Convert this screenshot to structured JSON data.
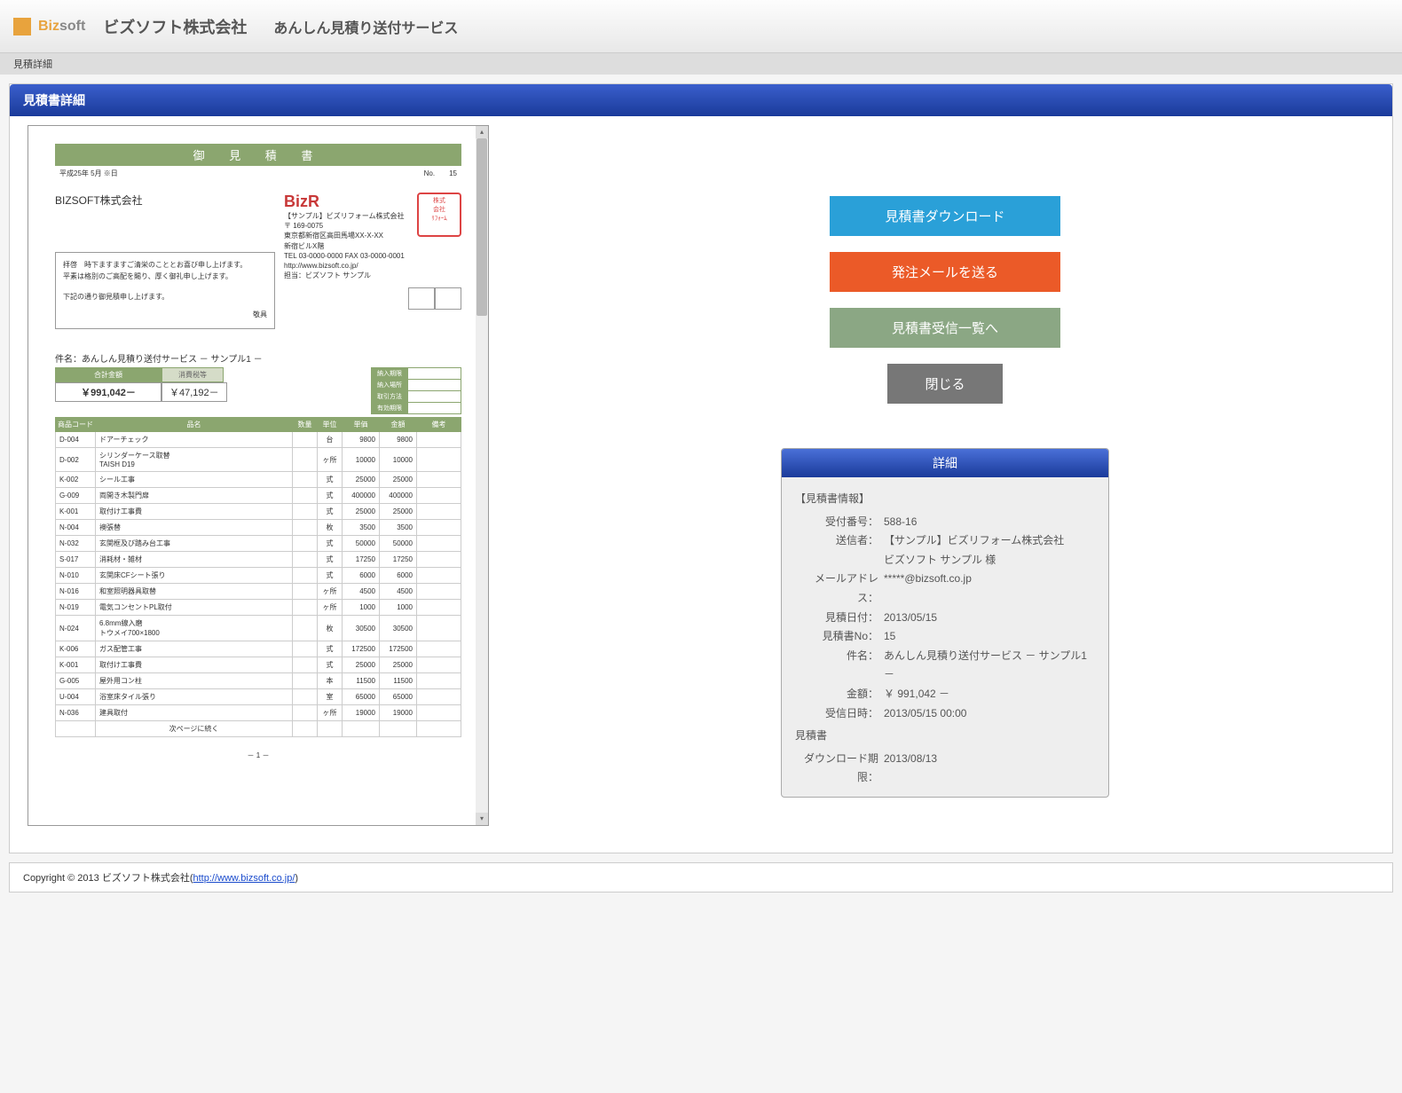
{
  "header": {
    "logo_orange": "Biz",
    "logo_gray": "soft",
    "company": "ビズソフト株式会社",
    "service": "あんしん見積り送付サービス"
  },
  "breadcrumb": "見積詳細",
  "panel_title": "見積書詳細",
  "document": {
    "title": "御 見 積 書",
    "date": "平成25年 5月 ※日",
    "no_label": "No.",
    "no": "15",
    "customer": "BIZSOFT株式会社",
    "greeting1": "拝啓　時下ますますご清栄のこととお喜び申し上げます。",
    "greeting2": "平素は格別のご高配を賜り、厚く御礼申し上げます。",
    "greeting3": "下記の通り御見積申し上げます。",
    "greeting_close": "敬具",
    "sender_logo": "BizR",
    "sender_name": "【サンプル】ビズリフォーム株式会社",
    "sender_zip": "〒 169-0075",
    "sender_addr1": "東京都新宿区高田馬場XX-X-XX",
    "sender_addr2": "新宿ビルX階",
    "sender_tel": "TEL 03-0000-0000 FAX 03-0000-0001",
    "sender_url": "http://www.bizsoft.co.jp/",
    "sender_contact": "担当：ビズソフト サンプル",
    "seal_text": "株式会社\nビズリフォーム",
    "subject_label": "件名：",
    "subject": "あんしん見積り送付サービス － サンプル1 －",
    "total_label": "合計金額",
    "total_value": "￥991,042－",
    "tax_label": "消費税等",
    "tax_value": "￥47,192－",
    "mini_rows": [
      "納入期限",
      "納入場所",
      "取引方法",
      "有効期限"
    ],
    "columns": [
      "商品コード",
      "品名",
      "数量",
      "単位",
      "単価",
      "金額",
      "備考"
    ],
    "rows": [
      {
        "code": "D-004",
        "name": "ドアーチェック",
        "qty": "",
        "unit": "台",
        "price": "9800",
        "amount": "9800"
      },
      {
        "code": "D-002",
        "name": "シリンダーケース取替\nTAISH D19",
        "qty": "",
        "unit": "ヶ所",
        "price": "10000",
        "amount": "10000"
      },
      {
        "code": "K-002",
        "name": "シール工事",
        "qty": "",
        "unit": "式",
        "price": "25000",
        "amount": "25000"
      },
      {
        "code": "G-009",
        "name": "両開き木製門扉",
        "qty": "",
        "unit": "式",
        "price": "400000",
        "amount": "400000"
      },
      {
        "code": "K-001",
        "name": "取付け工事費",
        "qty": "",
        "unit": "式",
        "price": "25000",
        "amount": "25000"
      },
      {
        "code": "N-004",
        "name": "襖張替",
        "qty": "",
        "unit": "枚",
        "price": "3500",
        "amount": "3500"
      },
      {
        "code": "N-032",
        "name": "玄関框及び踏み台工事",
        "qty": "",
        "unit": "式",
        "price": "50000",
        "amount": "50000"
      },
      {
        "code": "S-017",
        "name": "消耗材・雑材",
        "qty": "",
        "unit": "式",
        "price": "17250",
        "amount": "17250"
      },
      {
        "code": "N-010",
        "name": "玄関床CFシート張り",
        "qty": "",
        "unit": "式",
        "price": "6000",
        "amount": "6000"
      },
      {
        "code": "N-016",
        "name": "和室照明器具取替",
        "qty": "",
        "unit": "ヶ所",
        "price": "4500",
        "amount": "4500"
      },
      {
        "code": "N-019",
        "name": "電気コンセントPL取付",
        "qty": "",
        "unit": "ヶ所",
        "price": "1000",
        "amount": "1000"
      },
      {
        "code": "N-024",
        "name": "6.8mm線入磨\nトウメイ700×1800",
        "qty": "",
        "unit": "枚",
        "price": "30500",
        "amount": "30500"
      },
      {
        "code": "K-006",
        "name": "ガス配管工事",
        "qty": "",
        "unit": "式",
        "price": "172500",
        "amount": "172500"
      },
      {
        "code": "K-001",
        "name": "取付け工事費",
        "qty": "",
        "unit": "式",
        "price": "25000",
        "amount": "25000"
      },
      {
        "code": "G-005",
        "name": "屋外用コン柱",
        "qty": "",
        "unit": "本",
        "price": "11500",
        "amount": "11500"
      },
      {
        "code": "U-004",
        "name": "浴室床タイル張り",
        "qty": "",
        "unit": "室",
        "price": "65000",
        "amount": "65000"
      },
      {
        "code": "N-036",
        "name": "建具取付",
        "qty": "",
        "unit": "ヶ所",
        "price": "19000",
        "amount": "19000"
      }
    ],
    "next_page": "次ページに続く",
    "page_no": "－ 1 －"
  },
  "actions": {
    "download": "見積書ダウンロード",
    "order_mail": "発注メールを送る",
    "to_inbox": "見積書受信一覧へ",
    "close": "閉じる"
  },
  "detail": {
    "title": "詳細",
    "section1": "【見積書情報】",
    "rows": [
      {
        "l": "受付番号：",
        "v": "588-16"
      },
      {
        "l": "送信者：",
        "v": "【サンプル】ビズリフォーム株式会社\nビズソフト サンプル 様"
      },
      {
        "l": "メールアドレス：",
        "v": "*****@bizsoft.co.jp"
      },
      {
        "l": "見積日付：",
        "v": "2013/05/15"
      },
      {
        "l": "見積書No：",
        "v": "15"
      },
      {
        "l": "件名：",
        "v": "あんしん見積り送付サービス － サンプル1 －"
      },
      {
        "l": "金額：",
        "v": "￥ 991,042 －"
      },
      {
        "l": "受信日時：",
        "v": "2013/05/15 00:00"
      }
    ],
    "section2": "見積書",
    "expiry_l": "ダウンロード期限：",
    "expiry_v": "2013/08/13"
  },
  "footer": {
    "copyright": "Copyright © 2013 ビズソフト株式会社(",
    "url": "http://www.bizsoft.co.jp/",
    "close": ")"
  }
}
